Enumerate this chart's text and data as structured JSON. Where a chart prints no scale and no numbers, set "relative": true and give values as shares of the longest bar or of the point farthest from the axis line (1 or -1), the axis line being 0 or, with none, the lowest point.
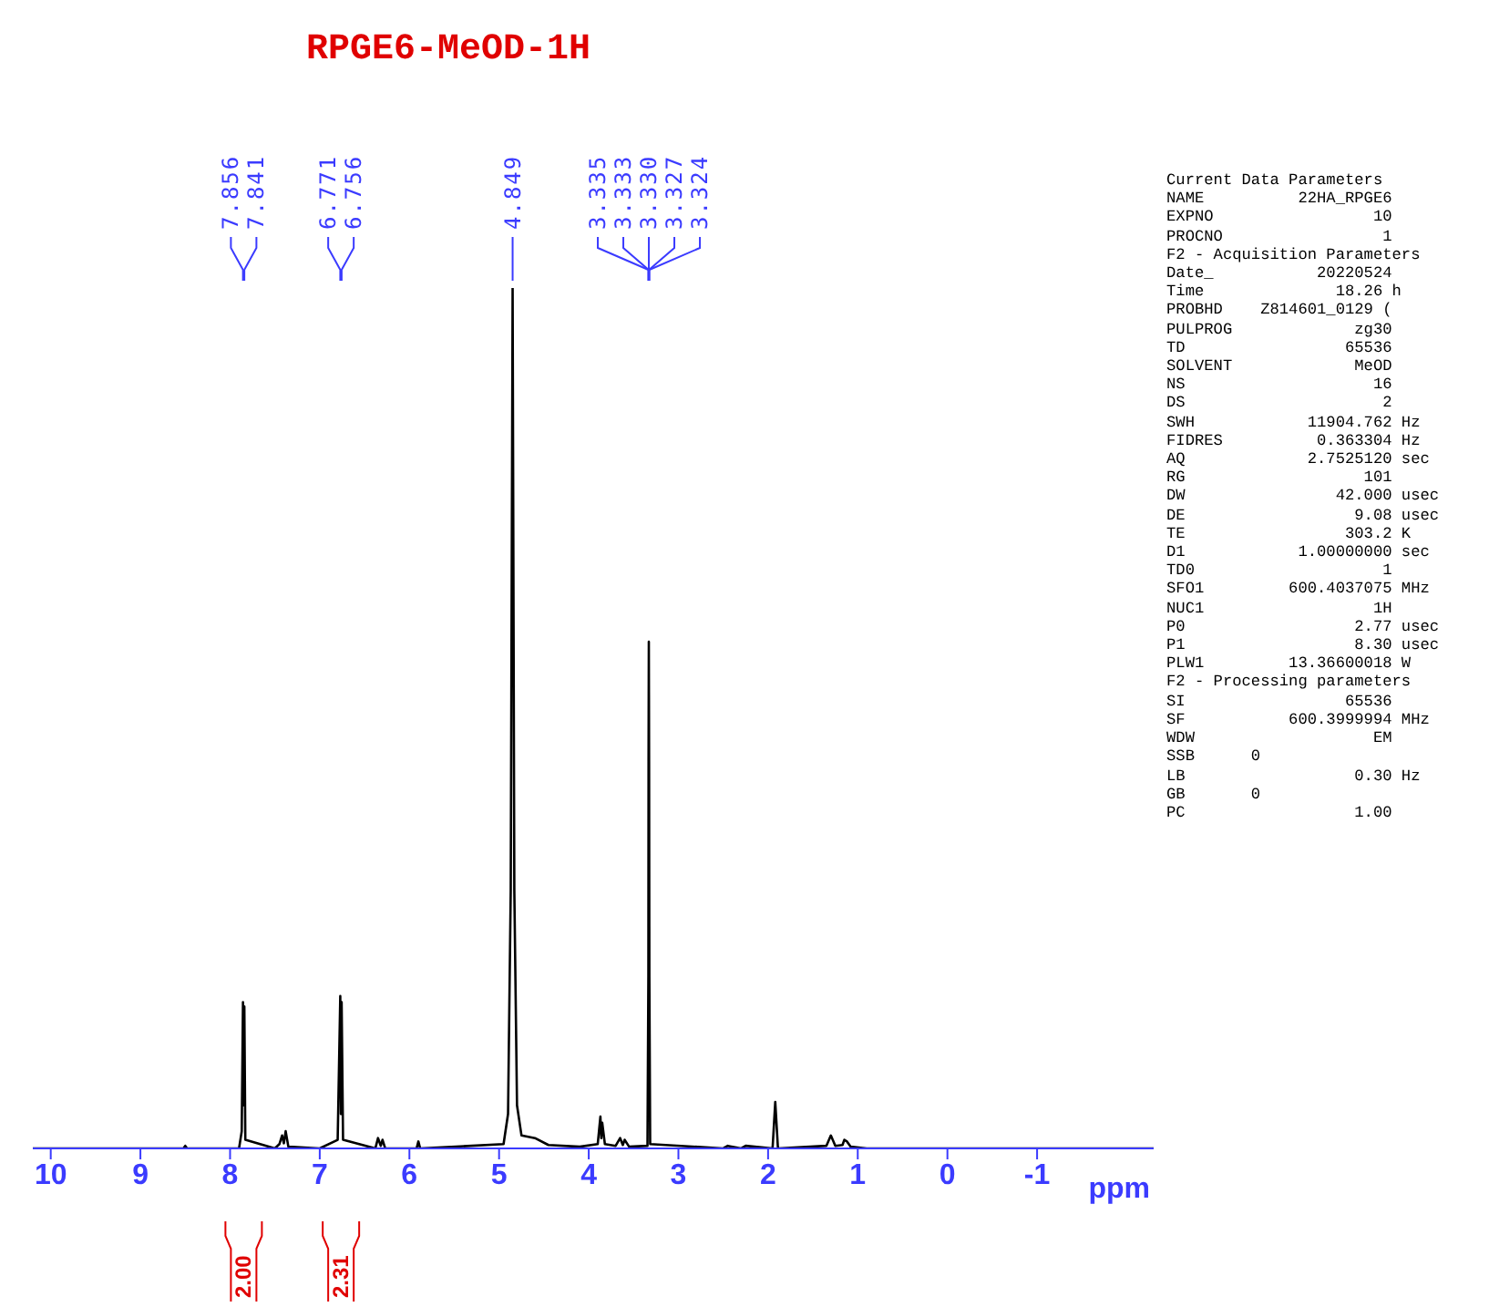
{
  "chart_data": {
    "type": "line",
    "title": "RPGE6-MeOD-1H",
    "xlabel": "ppm",
    "relative": true,
    "marker": "none",
    "line_style": "solid",
    "grid": false,
    "legend": false,
    "xlim": [
      10.2,
      -2.3
    ],
    "xticks": [
      10,
      9,
      8,
      7,
      6,
      5,
      4,
      3,
      2,
      1,
      0,
      -1
    ],
    "series": [
      {
        "color": "#000000",
        "x": [
          10.2,
          8.52,
          8.5,
          8.48,
          7.9,
          7.87,
          7.856,
          7.848,
          7.841,
          7.83,
          7.5,
          7.45,
          7.42,
          7.4,
          7.38,
          7.35,
          7.0,
          6.8,
          6.771,
          6.764,
          6.756,
          6.74,
          6.38,
          6.35,
          6.32,
          6.3,
          6.27,
          5.92,
          5.9,
          5.88,
          4.95,
          4.9,
          4.87,
          4.849,
          4.83,
          4.8,
          4.75,
          4.6,
          4.45,
          4.1,
          3.9,
          3.87,
          3.86,
          3.85,
          3.82,
          3.7,
          3.65,
          3.62,
          3.6,
          3.55,
          3.345,
          3.335,
          3.333,
          3.33,
          3.327,
          3.324,
          3.315,
          2.5,
          2.45,
          2.3,
          2.25,
          1.95,
          1.92,
          1.89,
          1.35,
          1.3,
          1.25,
          1.17,
          1.15,
          1.12,
          1.08,
          0.9,
          -2.3
        ],
        "values": [
          0,
          0,
          0.003,
          0,
          0,
          0.02,
          0.17,
          0.05,
          0.165,
          0.01,
          0,
          0.005,
          0.015,
          0.006,
          0.02,
          0.002,
          0,
          0.01,
          0.177,
          0.04,
          0.17,
          0.01,
          0,
          0.012,
          0.003,
          0.01,
          0,
          0,
          0.008,
          0,
          0.005,
          0.04,
          0.3,
          1,
          0.3,
          0.05,
          0.015,
          0.012,
          0.004,
          0.002,
          0.005,
          0.037,
          0.012,
          0.03,
          0.005,
          0.003,
          0.012,
          0.004,
          0.01,
          0.002,
          0.003,
          0.2,
          0.45,
          0.589,
          0.45,
          0.2,
          0.005,
          0,
          0.003,
          0,
          0.003,
          0,
          0.054,
          0,
          0.003,
          0.015,
          0.003,
          0.004,
          0.01,
          0.008,
          0.002,
          0,
          0
        ]
      }
    ],
    "annotations": [
      "2.00",
      "2.31",
      {
        "text": "7.856",
        "x": 7.856
      },
      {
        "text": "7.841",
        "x": 7.841
      },
      {
        "text": "6.771",
        "x": 6.771
      },
      {
        "text": "6.756",
        "x": 6.756
      },
      {
        "text": "4.849",
        "x": 4.849
      },
      {
        "text": "3.335",
        "x": 3.335
      },
      {
        "text": "3.333",
        "x": 3.333
      },
      {
        "text": "3.330",
        "x": 3.33
      },
      {
        "text": "3.327",
        "x": 3.327
      },
      {
        "text": "3.324",
        "x": 3.324
      },
      "Current Data Parameters",
      "NAME          22HA_RPGE6",
      "EXPNO                 10",
      "PROCNO                 1",
      "F2 - Acquisition Parameters",
      "Date_           20220524",
      "Time              18.26 h",
      "PROBHD    Z814601_0129 (",
      "PULPROG             zg30",
      "TD                 65536",
      "SOLVENT             MeOD",
      "NS                    16",
      "DS                     2",
      "SWH            11904.762 Hz",
      "FIDRES          0.363304 Hz",
      "AQ             2.7525120 sec",
      "RG                   101",
      "DW                42.000 usec",
      "DE                  9.08 usec",
      "TE                 303.2 K",
      "D1            1.00000000 sec",
      "TD0                    1",
      "SFO1         600.4037075 MHz",
      "NUC1                  1H",
      "P0                  2.77 usec",
      "P1                  8.30 usec",
      "PLW1         13.36600018 W",
      "F2 - Processing parameters",
      "SI                 65536",
      "SF           600.3999994 MHz",
      "WDW                   EM",
      "SSB      0",
      "LB                  0.30 Hz",
      "GB       0",
      "PC                  1.00"
    ]
  }
}
